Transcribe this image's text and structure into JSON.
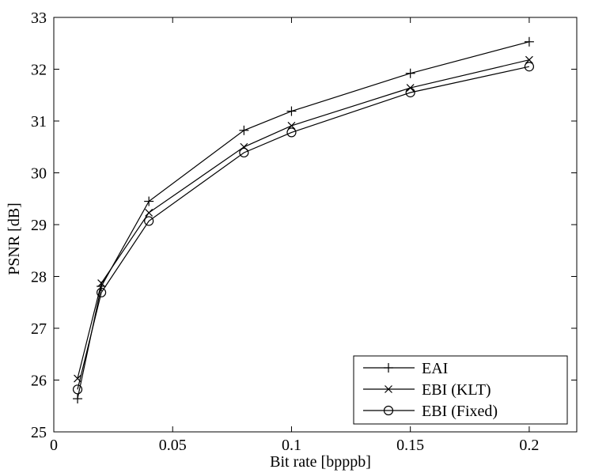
{
  "chart_data": {
    "type": "line",
    "title": "",
    "xlabel": "Bit rate [bpppb]",
    "ylabel": "PSNR [dB]",
    "xlim": [
      0,
      0.22
    ],
    "ylim": [
      25,
      33
    ],
    "xticks": [
      0,
      0.05,
      0.1,
      0.15,
      0.2
    ],
    "xtick_labels": [
      "0",
      "0.05",
      "0.1",
      "0.15",
      "0.2"
    ],
    "yticks": [
      25,
      26,
      27,
      28,
      29,
      30,
      31,
      32,
      33
    ],
    "ytick_labels": [
      "25",
      "26",
      "27",
      "28",
      "29",
      "30",
      "31",
      "32",
      "33"
    ],
    "grid": false,
    "legend_position": "bottom-right",
    "x": [
      0.01,
      0.02,
      0.04,
      0.08,
      0.1,
      0.15,
      0.2
    ],
    "series": [
      {
        "name": "EAI",
        "marker": "plus",
        "color": "#000000",
        "values": [
          25.64,
          27.81,
          29.45,
          30.82,
          31.19,
          31.92,
          32.53
        ]
      },
      {
        "name": "EBI (KLT)",
        "marker": "x",
        "color": "#000000",
        "values": [
          26.03,
          27.87,
          29.23,
          30.5,
          30.91,
          31.64,
          32.18
        ]
      },
      {
        "name": "EBI (Fixed)",
        "marker": "circle",
        "color": "#000000",
        "values": [
          25.82,
          27.69,
          29.07,
          30.39,
          30.78,
          31.55,
          32.05
        ]
      }
    ]
  }
}
